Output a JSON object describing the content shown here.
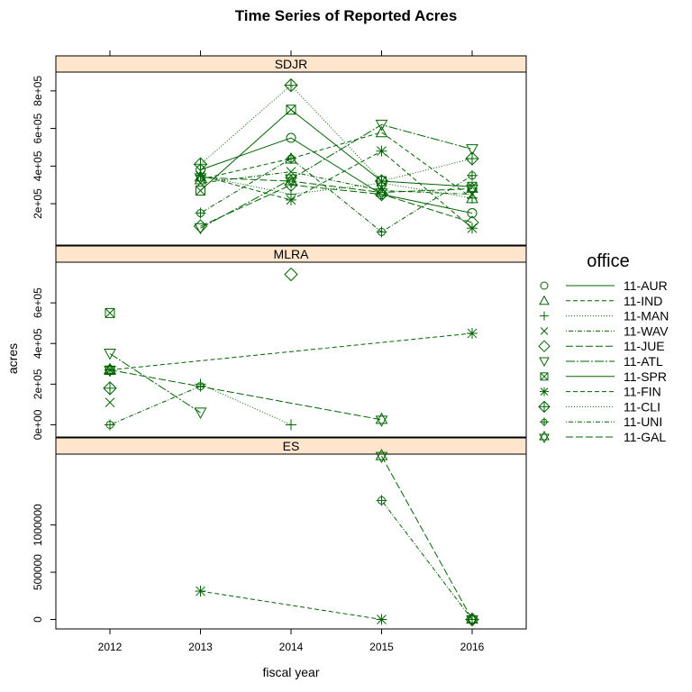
{
  "chart_data": {
    "type": "line",
    "title": "Time Series of Reported Acres",
    "xlabel": "fiscal year",
    "ylabel": "acres",
    "x_ticks": [
      "2012",
      "2013",
      "2014",
      "2015",
      "2016"
    ],
    "legend": {
      "title": "office",
      "entries": [
        "11-AUR",
        "11-IND",
        "11-MAN",
        "11-WAV",
        "11-JUE",
        "11-ATL",
        "11-SPR",
        "11-FIN",
        "11-CLI",
        "11-UNI",
        "11-GAL"
      ]
    },
    "colors": {
      "series": "#006400",
      "strip": "#ffe5cc"
    },
    "panels": [
      {
        "name": "SDJR",
        "y_ticks": [
          "2e+05",
          "4e+05",
          "6e+05",
          "8e+05"
        ],
        "ylim": [
          -20000,
          900000
        ],
        "series": [
          {
            "name": "11-AUR",
            "x": [
              2013,
              2014,
              2015,
              2016
            ],
            "y": [
              380000,
              550000,
              250000,
              150000
            ]
          },
          {
            "name": "11-IND",
            "x": [
              2013,
              2014,
              2015,
              2016
            ],
            "y": [
              330000,
              440000,
              580000,
              230000
            ]
          },
          {
            "name": "11-MAN",
            "x": [
              2013,
              2014,
              2015,
              2016
            ],
            "y": [
              350000,
              250000,
              310000,
              230000
            ]
          },
          {
            "name": "11-WAV",
            "x": [
              2013,
              2014,
              2015,
              2016
            ],
            "y": [
              310000,
              370000,
              270000,
              250000
            ]
          },
          {
            "name": "11-JUE",
            "x": [
              2013,
              2014,
              2015,
              2016
            ],
            "y": [
              80000,
              300000,
              250000,
              100000
            ]
          },
          {
            "name": "11-ATL",
            "x": [
              2013,
              2014,
              2015,
              2016
            ],
            "y": [
              70000,
              330000,
              620000,
              490000
            ]
          },
          {
            "name": "11-SPR",
            "x": [
              2013,
              2014,
              2015,
              2016
            ],
            "y": [
              270000,
              700000,
              320000,
              290000
            ]
          },
          {
            "name": "11-FIN",
            "x": [
              2013,
              2014,
              2015,
              2016
            ],
            "y": [
              350000,
              220000,
              480000,
              70000
            ]
          },
          {
            "name": "11-CLI",
            "x": [
              2013,
              2014,
              2015,
              2016
            ],
            "y": [
              410000,
              830000,
              320000,
              440000
            ]
          },
          {
            "name": "11-UNI",
            "x": [
              2013,
              2014,
              2015,
              2016
            ],
            "y": [
              150000,
              440000,
              50000,
              350000
            ]
          },
          {
            "name": "11-GAL",
            "x": [
              2013,
              2014,
              2015,
              2016
            ],
            "y": [
              340000,
              320000,
              260000,
              280000
            ]
          }
        ]
      },
      {
        "name": "MLRA",
        "y_ticks": [
          "0e+00",
          "2e+05",
          "4e+05",
          "6e+05"
        ],
        "ylim": [
          -60000,
          800000
        ],
        "series": [
          {
            "name": "11-AUR",
            "x": [
              2012
            ],
            "y": [
              270000
            ]
          },
          {
            "name": "11-IND",
            "x": [
              2012
            ],
            "y": [
              270000
            ]
          },
          {
            "name": "11-MAN",
            "x": [
              2013,
              2014
            ],
            "y": [
              200000,
              0
            ]
          },
          {
            "name": "11-WAV",
            "x": [
              2012
            ],
            "y": [
              110000
            ]
          },
          {
            "name": "11-JUE",
            "x": [
              2014
            ],
            "y": [
              740000
            ]
          },
          {
            "name": "11-ATL",
            "x": [
              2012,
              2013
            ],
            "y": [
              350000,
              60000
            ]
          },
          {
            "name": "11-SPR",
            "x": [
              2012
            ],
            "y": [
              550000
            ]
          },
          {
            "name": "11-FIN",
            "x": [
              2012,
              2016
            ],
            "y": [
              270000,
              450000
            ]
          },
          {
            "name": "11-CLI",
            "x": [
              2012
            ],
            "y": [
              180000
            ]
          },
          {
            "name": "11-UNI",
            "x": [
              2012,
              2013
            ],
            "y": [
              0,
              190000
            ]
          },
          {
            "name": "11-GAL",
            "x": [
              2012,
              2015
            ],
            "y": [
              270000,
              25000
            ]
          }
        ]
      },
      {
        "name": "ES",
        "y_ticks": [
          "0",
          "500000",
          "1000000"
        ],
        "ylim": [
          -100000,
          1750000
        ],
        "series": [
          {
            "name": "11-FIN",
            "x": [
              2013,
              2015
            ],
            "y": [
              300000,
              0
            ]
          },
          {
            "name": "11-UNI",
            "x": [
              2015,
              2016
            ],
            "y": [
              1260000,
              0
            ]
          },
          {
            "name": "11-GAL",
            "x": [
              2015,
              2016
            ],
            "y": [
              1730000,
              0
            ]
          },
          {
            "name": "11-CLI",
            "x": [
              2016
            ],
            "y": [
              0
            ]
          }
        ]
      }
    ]
  }
}
